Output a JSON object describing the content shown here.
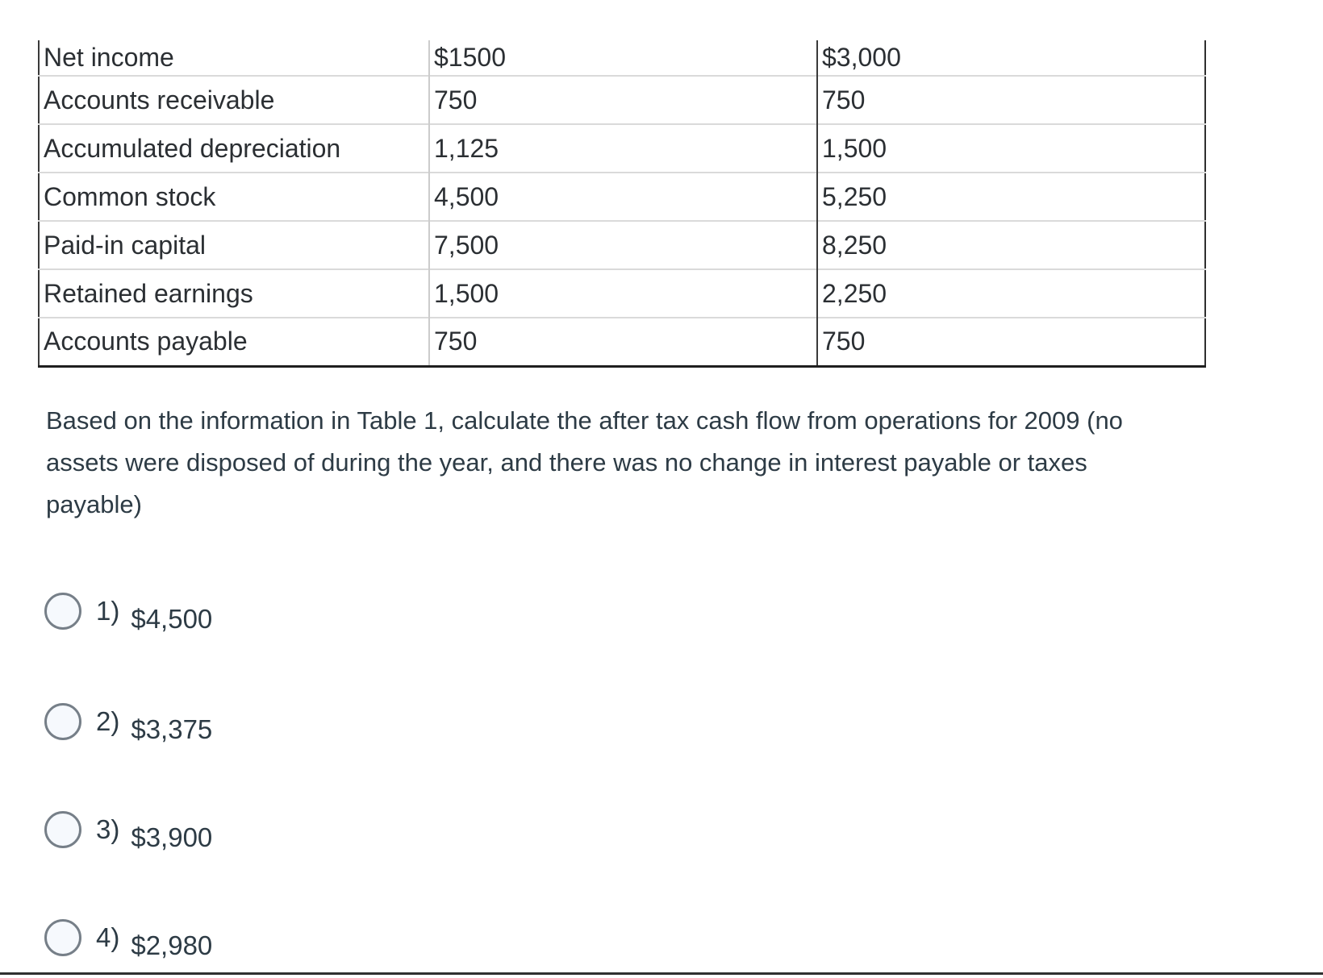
{
  "table": {
    "rows": [
      {
        "label": "Net income",
        "values": [
          "$1500",
          "$3,000"
        ]
      },
      {
        "label": "Accounts receivable",
        "values": [
          "750",
          "750"
        ]
      },
      {
        "label": "Accumulated depreciation",
        "values": [
          "1,125",
          "1,500"
        ]
      },
      {
        "label": "Common stock",
        "values": [
          "4,500",
          "5,250"
        ]
      },
      {
        "label": "Paid-in capital",
        "values": [
          "7,500",
          "8,250"
        ]
      },
      {
        "label": "Retained earnings",
        "values": [
          "1,500",
          "2,250"
        ]
      },
      {
        "label": "Accounts payable",
        "values": [
          "750",
          "750"
        ]
      }
    ]
  },
  "question": {
    "text": "Based on the information in Table 1, calculate the after tax cash flow from operations for 2009 (no assets were disposed of during the year, and there was no change in interest payable or taxes payable)"
  },
  "options": [
    {
      "number": "1)",
      "value": "$4,500"
    },
    {
      "number": "2)",
      "value": "$3,375"
    },
    {
      "number": "3)",
      "value": "$3,900"
    },
    {
      "number": "4)",
      "value": "$2,980"
    }
  ],
  "colors": {
    "text": "#2d3b45",
    "table_border_dark": "#2f2f2f",
    "table_border_light": "#dadada",
    "radio_border": "#767f88",
    "radio_fill": "#f6f9fd"
  }
}
